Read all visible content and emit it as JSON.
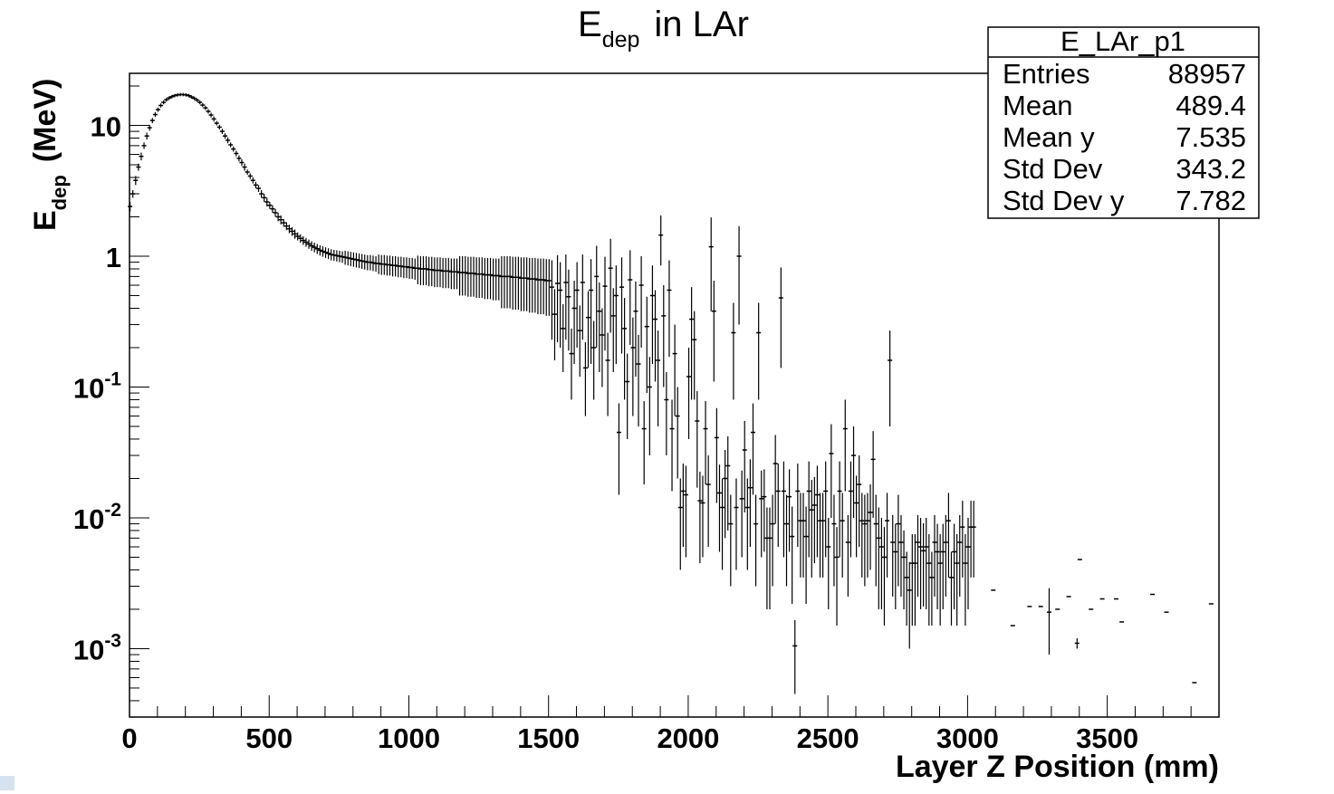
{
  "chart_data": {
    "type": "scatter",
    "title": "E",
    "title_sub": "dep",
    "title_tail": "in LAr",
    "xlabel": "Layer Z Position (mm)",
    "ylabel": "E",
    "ylabel_sub": "dep",
    "ylabel_tail": "(MeV)",
    "x_ticks": [
      "0",
      "500",
      "1000",
      "1500",
      "2000",
      "2500",
      "3000",
      "3500"
    ],
    "y_ticks": [
      {
        "base": "10",
        "exp": "-3"
      },
      {
        "base": "10",
        "exp": "-2"
      },
      {
        "base": "10",
        "exp": "-1"
      },
      {
        "base": "1",
        "exp": ""
      },
      {
        "base": "10",
        "exp": ""
      }
    ],
    "y_tick_values": [
      0.001,
      0.01,
      0.1,
      1,
      10
    ],
    "xlim": [
      0,
      3900
    ],
    "ylim": [
      0.0003,
      25
    ],
    "y_scale": "log",
    "legend_position": "top-right",
    "stats_box": {
      "name": "E_LAr_p1",
      "rows": [
        {
          "label": "Entries",
          "value": "88957"
        },
        {
          "label": "Mean",
          "value": "489.4"
        },
        {
          "label": "Mean y",
          "value": "7.535"
        },
        {
          "label": "Std Dev",
          "value": "343.2"
        },
        {
          "label": "Std Dev y",
          "value": "7.782"
        }
      ]
    },
    "points": [
      [
        2,
        2.4,
        0.2
      ],
      [
        12,
        3.0,
        0.2
      ],
      [
        22,
        3.8,
        0.3
      ],
      [
        32,
        4.8,
        0.3
      ],
      [
        42,
        5.8,
        0.4
      ],
      [
        52,
        7.0,
        0.4
      ],
      [
        62,
        8.3,
        0.5
      ],
      [
        72,
        9.6,
        0.5
      ],
      [
        82,
        10.9,
        0.5
      ],
      [
        92,
        12.1,
        0.5
      ],
      [
        102,
        13.2,
        0.5
      ],
      [
        112,
        14.2,
        0.5
      ],
      [
        122,
        15.0,
        0.5
      ],
      [
        132,
        15.7,
        0.5
      ],
      [
        142,
        16.2,
        0.5
      ],
      [
        152,
        16.6,
        0.5
      ],
      [
        162,
        16.9,
        0.5
      ],
      [
        172,
        17.1,
        0.5
      ],
      [
        182,
        17.2,
        0.5
      ],
      [
        192,
        17.2,
        0.5
      ],
      [
        202,
        17.1,
        0.5
      ],
      [
        212,
        16.9,
        0.5
      ],
      [
        222,
        16.5,
        0.5
      ],
      [
        232,
        16.1,
        0.5
      ],
      [
        242,
        15.6,
        0.5
      ],
      [
        252,
        15.0,
        0.5
      ],
      [
        262,
        14.3,
        0.5
      ],
      [
        272,
        13.6,
        0.5
      ],
      [
        282,
        12.8,
        0.5
      ],
      [
        292,
        12.0,
        0.5
      ],
      [
        302,
        11.2,
        0.5
      ],
      [
        312,
        10.4,
        0.4
      ],
      [
        322,
        9.7,
        0.4
      ],
      [
        332,
        9.0,
        0.4
      ],
      [
        342,
        8.3,
        0.4
      ],
      [
        352,
        7.7,
        0.4
      ],
      [
        362,
        7.1,
        0.3
      ],
      [
        372,
        6.6,
        0.3
      ],
      [
        382,
        6.1,
        0.3
      ],
      [
        392,
        5.6,
        0.3
      ],
      [
        402,
        5.2,
        0.3
      ],
      [
        412,
        4.8,
        0.3
      ],
      [
        422,
        4.4,
        0.2
      ],
      [
        432,
        4.1,
        0.2
      ],
      [
        442,
        3.8,
        0.2
      ],
      [
        452,
        3.5,
        0.2
      ],
      [
        462,
        3.3,
        0.2
      ],
      [
        472,
        3.0,
        0.2
      ],
      [
        482,
        2.8,
        0.2
      ],
      [
        492,
        2.6,
        0.2
      ],
      [
        502,
        2.45,
        0.15
      ],
      [
        512,
        2.3,
        0.15
      ],
      [
        522,
        2.15,
        0.15
      ],
      [
        532,
        2.0,
        0.15
      ],
      [
        542,
        1.9,
        0.15
      ],
      [
        552,
        1.8,
        0.12
      ],
      [
        562,
        1.7,
        0.12
      ],
      [
        572,
        1.62,
        0.12
      ],
      [
        582,
        1.55,
        0.12
      ],
      [
        592,
        1.48,
        0.12
      ],
      [
        602,
        1.42,
        0.1
      ],
      [
        612,
        1.37,
        0.1
      ],
      [
        622,
        1.32,
        0.1
      ],
      [
        632,
        1.28,
        0.1
      ],
      [
        642,
        1.24,
        0.1
      ],
      [
        652,
        1.2,
        0.1
      ],
      [
        662,
        1.17,
        0.1
      ],
      [
        672,
        1.14,
        0.1
      ],
      [
        682,
        1.11,
        0.1
      ],
      [
        692,
        1.09,
        0.1
      ],
      [
        702,
        1.07,
        0.1
      ],
      [
        712,
        1.05,
        0.1
      ],
      [
        722,
        1.03,
        0.1
      ],
      [
        732,
        1.02,
        0.1
      ],
      [
        742,
        1.01,
        0.1
      ],
      [
        752,
        1.0,
        0.1
      ],
      [
        762,
        0.99,
        0.1
      ],
      [
        772,
        0.98,
        0.12
      ],
      [
        782,
        0.97,
        0.12
      ],
      [
        792,
        0.96,
        0.12
      ],
      [
        802,
        0.95,
        0.12
      ],
      [
        812,
        0.94,
        0.12
      ],
      [
        822,
        0.93,
        0.12
      ],
      [
        832,
        0.92,
        0.12
      ],
      [
        842,
        0.91,
        0.12
      ],
      [
        852,
        0.9,
        0.12
      ],
      [
        862,
        0.9,
        0.12
      ],
      [
        872,
        0.89,
        0.12
      ],
      [
        882,
        0.88,
        0.12
      ],
      [
        892,
        0.88,
        0.15
      ],
      [
        902,
        0.87,
        0.15
      ],
      [
        912,
        0.87,
        0.15
      ],
      [
        922,
        0.86,
        0.15
      ],
      [
        932,
        0.86,
        0.15
      ],
      [
        942,
        0.85,
        0.15
      ],
      [
        952,
        0.85,
        0.15
      ],
      [
        962,
        0.84,
        0.15
      ],
      [
        972,
        0.84,
        0.15
      ],
      [
        982,
        0.83,
        0.15
      ],
      [
        992,
        0.83,
        0.15
      ],
      [
        1002,
        0.82,
        0.15
      ],
      [
        1012,
        0.82,
        0.15
      ],
      [
        1022,
        0.81,
        0.15
      ],
      [
        1032,
        0.81,
        0.2
      ],
      [
        1042,
        0.8,
        0.2
      ],
      [
        1052,
        0.8,
        0.2
      ],
      [
        1062,
        0.8,
        0.2
      ],
      [
        1072,
        0.79,
        0.2
      ],
      [
        1082,
        0.79,
        0.2
      ],
      [
        1092,
        0.78,
        0.2
      ],
      [
        1102,
        0.78,
        0.2
      ],
      [
        1112,
        0.78,
        0.2
      ],
      [
        1122,
        0.77,
        0.2
      ],
      [
        1132,
        0.77,
        0.2
      ],
      [
        1142,
        0.77,
        0.2
      ],
      [
        1152,
        0.76,
        0.2
      ],
      [
        1162,
        0.76,
        0.2
      ],
      [
        1172,
        0.76,
        0.2
      ],
      [
        1182,
        0.75,
        0.25
      ],
      [
        1192,
        0.75,
        0.25
      ],
      [
        1202,
        0.75,
        0.25
      ],
      [
        1212,
        0.74,
        0.25
      ],
      [
        1222,
        0.74,
        0.25
      ],
      [
        1232,
        0.74,
        0.25
      ],
      [
        1242,
        0.73,
        0.25
      ],
      [
        1252,
        0.73,
        0.25
      ],
      [
        1262,
        0.73,
        0.25
      ],
      [
        1272,
        0.72,
        0.25
      ],
      [
        1282,
        0.72,
        0.25
      ],
      [
        1292,
        0.72,
        0.25
      ],
      [
        1302,
        0.71,
        0.25
      ],
      [
        1312,
        0.71,
        0.25
      ],
      [
        1322,
        0.71,
        0.25
      ],
      [
        1332,
        0.7,
        0.3
      ],
      [
        1342,
        0.7,
        0.3
      ],
      [
        1352,
        0.7,
        0.3
      ],
      [
        1362,
        0.7,
        0.3
      ],
      [
        1372,
        0.69,
        0.3
      ],
      [
        1382,
        0.69,
        0.3
      ],
      [
        1392,
        0.69,
        0.3
      ],
      [
        1402,
        0.68,
        0.3
      ],
      [
        1412,
        0.68,
        0.3
      ],
      [
        1422,
        0.68,
        0.3
      ],
      [
        1432,
        0.67,
        0.3
      ],
      [
        1442,
        0.67,
        0.3
      ],
      [
        1452,
        0.67,
        0.3
      ],
      [
        1462,
        0.66,
        0.3
      ],
      [
        1472,
        0.66,
        0.3
      ],
      [
        1482,
        0.66,
        0.3
      ],
      [
        1492,
        0.65,
        0.3
      ],
      [
        1502,
        0.65,
        0.3
      ],
      [
        1512,
        0.58,
        0.35
      ],
      [
        1522,
        0.36,
        0.2
      ],
      [
        1532,
        0.62,
        0.4
      ],
      [
        1542,
        0.55,
        0.35
      ],
      [
        1552,
        0.28,
        0.15
      ],
      [
        1562,
        0.63,
        0.4
      ],
      [
        1572,
        0.49,
        0.3
      ],
      [
        1582,
        0.18,
        0.1
      ],
      [
        1592,
        0.4,
        0.25
      ],
      [
        1602,
        0.55,
        0.35
      ],
      [
        1612,
        0.27,
        0.15
      ],
      [
        1622,
        0.63,
        0.4
      ],
      [
        1632,
        0.14,
        0.08
      ],
      [
        1642,
        0.34,
        0.2
      ],
      [
        1652,
        0.55,
        0.4
      ],
      [
        1662,
        0.2,
        0.12
      ],
      [
        1672,
        0.7,
        0.5
      ],
      [
        1682,
        0.38,
        0.25
      ],
      [
        1692,
        0.25,
        0.15
      ],
      [
        1702,
        0.59,
        0.4
      ],
      [
        1712,
        0.16,
        0.1
      ],
      [
        1722,
        0.81,
        0.55
      ],
      [
        1732,
        0.35,
        0.22
      ],
      [
        1742,
        0.5,
        0.35
      ],
      [
        1752,
        0.045,
        0.03
      ],
      [
        1762,
        0.58,
        0.4
      ],
      [
        1772,
        0.28,
        0.2
      ],
      [
        1782,
        0.11,
        0.07
      ],
      [
        1792,
        0.66,
        0.45
      ],
      [
        1802,
        0.2,
        0.14
      ],
      [
        1812,
        0.38,
        0.26
      ],
      [
        1822,
        0.15,
        0.1
      ],
      [
        1832,
        0.6,
        0.4
      ],
      [
        1842,
        0.048,
        0.03
      ],
      [
        1852,
        0.29,
        0.2
      ],
      [
        1862,
        0.1,
        0.07
      ],
      [
        1872,
        0.5,
        0.35
      ],
      [
        1882,
        0.33,
        0.22
      ],
      [
        1892,
        0.16,
        0.11
      ],
      [
        1902,
        1.45,
        0.6
      ],
      [
        1912,
        0.35,
        0.25
      ],
      [
        1922,
        0.08,
        0.05
      ],
      [
        1932,
        0.55,
        0.38
      ],
      [
        1942,
        0.048,
        0.032
      ],
      [
        1952,
        0.18,
        0.12
      ],
      [
        1962,
        0.06,
        0.04
      ],
      [
        1972,
        0.012,
        0.008
      ],
      [
        1982,
        0.016,
        0.01
      ],
      [
        1992,
        0.015,
        0.01
      ],
      [
        2002,
        0.12,
        0.08
      ],
      [
        2012,
        0.33,
        0.25
      ],
      [
        2022,
        0.23,
        0.15
      ],
      [
        2032,
        0.055,
        0.038
      ],
      [
        2042,
        0.0135,
        0.009
      ],
      [
        2052,
        0.013,
        0.008
      ],
      [
        2062,
        0.048,
        0.03
      ],
      [
        2072,
        0.018,
        0.012
      ],
      [
        2082,
        1.18,
        0.8
      ],
      [
        2092,
        0.38,
        0.27
      ],
      [
        2102,
        0.041,
        0.028
      ],
      [
        2112,
        0.0155,
        0.01
      ],
      [
        2122,
        0.012,
        0.008
      ],
      [
        2132,
        0.02,
        0.013
      ],
      [
        2142,
        0.025,
        0.017
      ],
      [
        2152,
        0.009,
        0.006
      ],
      [
        2162,
        0.26,
        0.18
      ],
      [
        2172,
        0.012,
        0.008
      ],
      [
        2182,
        1.0,
        0.7
      ],
      [
        2192,
        0.014,
        0.009
      ],
      [
        2202,
        0.033,
        0.022
      ],
      [
        2212,
        0.012,
        0.008
      ],
      [
        2222,
        0.017,
        0.011
      ],
      [
        2232,
        0.045,
        0.03
      ],
      [
        2242,
        0.009,
        0.006
      ],
      [
        2252,
        0.26,
        0.18
      ],
      [
        2262,
        0.014,
        0.009
      ],
      [
        2272,
        0.0145,
        0.009
      ],
      [
        2282,
        0.007,
        0.005
      ],
      [
        2292,
        0.007,
        0.005
      ],
      [
        2302,
        0.009,
        0.006
      ],
      [
        2312,
        0.026,
        0.017
      ],
      [
        2322,
        0.016,
        0.01
      ],
      [
        2332,
        0.48,
        0.34
      ],
      [
        2342,
        0.016,
        0.011
      ],
      [
        2352,
        0.009,
        0.006
      ],
      [
        2362,
        0.0145,
        0.009
      ],
      [
        2372,
        0.0072,
        0.005
      ],
      [
        2382,
        0.00105,
        0.0006
      ],
      [
        2392,
        0.016,
        0.01
      ],
      [
        2402,
        0.0095,
        0.006
      ],
      [
        2412,
        0.0095,
        0.006
      ],
      [
        2422,
        0.0072,
        0.005
      ],
      [
        2432,
        0.016,
        0.011
      ],
      [
        2442,
        0.0115,
        0.008
      ],
      [
        2452,
        0.0125,
        0.008
      ],
      [
        2462,
        0.015,
        0.01
      ],
      [
        2472,
        0.0095,
        0.006
      ],
      [
        2482,
        0.0095,
        0.006
      ],
      [
        2492,
        0.016,
        0.011
      ],
      [
        2502,
        0.006,
        0.004
      ],
      [
        2512,
        0.031,
        0.021
      ],
      [
        2522,
        0.009,
        0.006
      ],
      [
        2532,
        0.005,
        0.0035
      ],
      [
        2542,
        0.016,
        0.011
      ],
      [
        2552,
        0.0095,
        0.006
      ],
      [
        2562,
        0.048,
        0.032
      ],
      [
        2572,
        0.0065,
        0.004
      ],
      [
        2582,
        0.016,
        0.011
      ],
      [
        2592,
        0.03,
        0.02
      ],
      [
        2602,
        0.013,
        0.008
      ],
      [
        2612,
        0.018,
        0.012
      ],
      [
        2622,
        0.0095,
        0.006
      ],
      [
        2632,
        0.009,
        0.006
      ],
      [
        2642,
        0.0095,
        0.006
      ],
      [
        2652,
        0.011,
        0.007
      ],
      [
        2662,
        0.028,
        0.018
      ],
      [
        2672,
        0.009,
        0.006
      ],
      [
        2682,
        0.007,
        0.005
      ],
      [
        2692,
        0.006,
        0.004
      ],
      [
        2702,
        0.005,
        0.0035
      ],
      [
        2712,
        0.0095,
        0.006
      ],
      [
        2722,
        0.16,
        0.11
      ],
      [
        2732,
        0.0065,
        0.004
      ],
      [
        2742,
        0.0055,
        0.0035
      ],
      [
        2752,
        0.009,
        0.006
      ],
      [
        2762,
        0.0065,
        0.004
      ],
      [
        2772,
        0.005,
        0.003
      ],
      [
        2782,
        0.0035,
        0.002
      ],
      [
        2792,
        0.0028,
        0.0018
      ],
      [
        2802,
        0.0045,
        0.003
      ],
      [
        2812,
        0.0045,
        0.003
      ],
      [
        2822,
        0.0065,
        0.004
      ],
      [
        2832,
        0.006,
        0.004
      ],
      [
        2842,
        0.0056,
        0.0035
      ],
      [
        2852,
        0.006,
        0.004
      ],
      [
        2862,
        0.0045,
        0.003
      ],
      [
        2872,
        0.0035,
        0.002
      ],
      [
        2882,
        0.0065,
        0.004
      ],
      [
        2892,
        0.0055,
        0.0035
      ],
      [
        2902,
        0.0045,
        0.003
      ],
      [
        2912,
        0.0055,
        0.0035
      ],
      [
        2922,
        0.0065,
        0.004
      ],
      [
        2932,
        0.0095,
        0.006
      ],
      [
        2942,
        0.0035,
        0.002
      ],
      [
        2952,
        0.0055,
        0.0035
      ],
      [
        2962,
        0.0045,
        0.003
      ],
      [
        2972,
        0.0065,
        0.004
      ],
      [
        2982,
        0.0085,
        0.005
      ],
      [
        2992,
        0.0045,
        0.003
      ],
      [
        3002,
        0.006,
        0.004
      ],
      [
        3012,
        0.0085,
        0.005
      ],
      [
        3022,
        0.0085,
        0.005
      ],
      [
        3092,
        0.0028,
        0
      ],
      [
        3162,
        0.0015,
        0
      ],
      [
        3222,
        0.0021,
        0
      ],
      [
        3262,
        0.0021,
        0
      ],
      [
        3292,
        0.0019,
        0.001
      ],
      [
        3322,
        0.002,
        0
      ],
      [
        3362,
        0.0025,
        0
      ],
      [
        3392,
        0.0011,
        0.0001
      ],
      [
        3402,
        0.0048,
        0
      ],
      [
        3442,
        0.002,
        0
      ],
      [
        3482,
        0.0024,
        0
      ],
      [
        3532,
        0.0024,
        0
      ],
      [
        3552,
        0.0016,
        0
      ],
      [
        3662,
        0.0026,
        0
      ],
      [
        3712,
        0.0019,
        0
      ],
      [
        3812,
        0.00055,
        0
      ],
      [
        3872,
        0.0022,
        0
      ]
    ]
  }
}
